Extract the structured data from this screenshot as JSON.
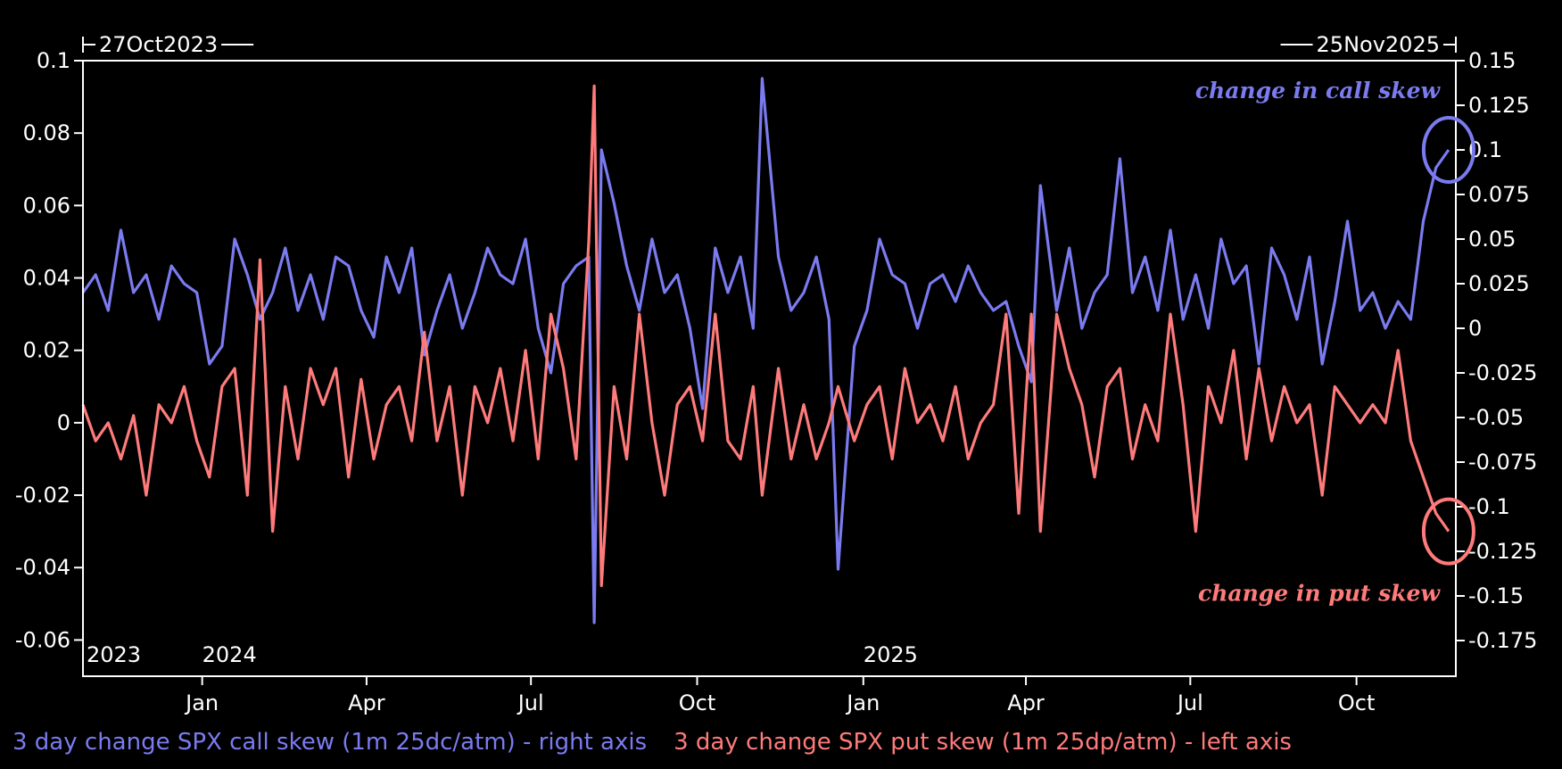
{
  "chart_data": {
    "type": "line",
    "date_range": {
      "start": "27Oct2023",
      "end": "25Nov2025"
    },
    "x_range": [
      "2023-10-27",
      "2025-11-25"
    ],
    "left_axis": {
      "ylim": [
        -0.07,
        0.1
      ],
      "ticks": [
        0.1,
        0.08,
        0.06,
        0.04,
        0.02,
        0,
        -0.02,
        -0.04,
        -0.06
      ],
      "tick_labels": [
        "0.1",
        "0.08",
        "0.06",
        "0.04",
        "0.02",
        "0",
        "-0.02",
        "-0.04",
        "-0.06"
      ]
    },
    "right_axis": {
      "ylim": [
        -0.195,
        0.15
      ],
      "ticks": [
        0.15,
        0.125,
        0.1,
        0.075,
        0.05,
        0.025,
        0,
        -0.025,
        -0.05,
        -0.075,
        -0.1,
        -0.125,
        -0.15,
        -0.175
      ],
      "tick_labels": [
        "0.15",
        "0.125",
        "0.1",
        "0.075",
        "0.05",
        "0.025",
        "0",
        "-0.025",
        "-0.05",
        "-0.075",
        "-0.1",
        "-0.125",
        "-0.15",
        "-0.175"
      ]
    },
    "x_ticks": [
      {
        "date": "2024-01-01",
        "label": "Jan"
      },
      {
        "date": "2024-04-01",
        "label": "Apr"
      },
      {
        "date": "2024-07-01",
        "label": "Jul"
      },
      {
        "date": "2024-10-01",
        "label": "Oct"
      },
      {
        "date": "2025-01-01",
        "label": "Jan"
      },
      {
        "date": "2025-04-01",
        "label": "Apr"
      },
      {
        "date": "2025-07-01",
        "label": "Jul"
      },
      {
        "date": "2025-10-01",
        "label": "Oct"
      }
    ],
    "year_labels": [
      {
        "date": "2023-10-27",
        "label": "2023"
      },
      {
        "date": "2024-01-01",
        "label": "2024"
      },
      {
        "date": "2025-01-01",
        "label": "2025"
      }
    ],
    "grid": false,
    "legend_position": "bottom",
    "series": [
      {
        "name": "3 day change SPX call skew (1m 25dc/atm) - right axis",
        "axis": "right",
        "color": "#7b7bf0",
        "x": [
          "2023-10-27",
          "2023-11-03",
          "2023-11-10",
          "2023-11-17",
          "2023-11-24",
          "2023-12-01",
          "2023-12-08",
          "2023-12-15",
          "2023-12-22",
          "2023-12-29",
          "2024-01-05",
          "2024-01-12",
          "2024-01-19",
          "2024-01-26",
          "2024-02-02",
          "2024-02-09",
          "2024-02-16",
          "2024-02-23",
          "2024-03-01",
          "2024-03-08",
          "2024-03-15",
          "2024-03-22",
          "2024-03-29",
          "2024-04-05",
          "2024-04-12",
          "2024-04-19",
          "2024-04-26",
          "2024-05-03",
          "2024-05-10",
          "2024-05-17",
          "2024-05-24",
          "2024-05-31",
          "2024-06-07",
          "2024-06-14",
          "2024-06-21",
          "2024-06-28",
          "2024-07-05",
          "2024-07-12",
          "2024-07-19",
          "2024-07-26",
          "2024-08-02",
          "2024-08-05",
          "2024-08-09",
          "2024-08-16",
          "2024-08-23",
          "2024-08-30",
          "2024-09-06",
          "2024-09-13",
          "2024-09-20",
          "2024-09-27",
          "2024-10-04",
          "2024-10-11",
          "2024-10-18",
          "2024-10-25",
          "2024-11-01",
          "2024-11-06",
          "2024-11-15",
          "2024-11-22",
          "2024-11-29",
          "2024-12-06",
          "2024-12-13",
          "2024-12-18",
          "2024-12-27",
          "2025-01-03",
          "2025-01-10",
          "2025-01-17",
          "2025-01-24",
          "2025-01-31",
          "2025-02-07",
          "2025-02-14",
          "2025-02-21",
          "2025-02-28",
          "2025-03-07",
          "2025-03-14",
          "2025-03-21",
          "2025-03-28",
          "2025-04-04",
          "2025-04-09",
          "2025-04-18",
          "2025-04-25",
          "2025-05-02",
          "2025-05-09",
          "2025-05-16",
          "2025-05-23",
          "2025-05-30",
          "2025-06-06",
          "2025-06-13",
          "2025-06-20",
          "2025-06-27",
          "2025-07-04",
          "2025-07-11",
          "2025-07-18",
          "2025-07-25",
          "2025-08-01",
          "2025-08-08",
          "2025-08-15",
          "2025-08-22",
          "2025-08-29",
          "2025-09-05",
          "2025-09-12",
          "2025-09-19",
          "2025-09-26",
          "2025-10-03",
          "2025-10-10",
          "2025-10-17",
          "2025-10-24",
          "2025-10-31",
          "2025-11-07",
          "2025-11-14",
          "2025-11-21"
        ],
        "values": [
          0.02,
          0.03,
          0.01,
          0.055,
          0.02,
          0.03,
          0.005,
          0.035,
          0.025,
          0.02,
          -0.02,
          -0.01,
          0.05,
          0.03,
          0.005,
          0.02,
          0.045,
          0.01,
          0.03,
          0.005,
          0.04,
          0.035,
          0.01,
          -0.005,
          0.04,
          0.02,
          0.045,
          -0.015,
          0.01,
          0.03,
          0.0,
          0.02,
          0.045,
          0.03,
          0.025,
          0.05,
          0.0,
          -0.025,
          0.025,
          0.035,
          0.04,
          -0.165,
          0.1,
          0.07,
          0.035,
          0.01,
          0.05,
          0.02,
          0.03,
          0.0,
          -0.045,
          0.045,
          0.02,
          0.04,
          0.0,
          0.14,
          0.04,
          0.01,
          0.02,
          0.04,
          0.005,
          -0.135,
          -0.01,
          0.01,
          0.05,
          0.03,
          0.025,
          0.0,
          0.025,
          0.03,
          0.015,
          0.035,
          0.02,
          0.01,
          0.015,
          -0.01,
          -0.03,
          0.08,
          0.01,
          0.045,
          0.0,
          0.02,
          0.03,
          0.095,
          0.02,
          0.04,
          0.01,
          0.055,
          0.005,
          0.03,
          0.0,
          0.05,
          0.025,
          0.035,
          -0.02,
          0.045,
          0.03,
          0.005,
          0.04,
          -0.02,
          0.015,
          0.06,
          0.01,
          0.02,
          0.0,
          0.015,
          0.005,
          0.06,
          0.09,
          0.1
        ]
      },
      {
        "name": "3 day change SPX put skew (1m 25dp/atm) - left axis",
        "axis": "left",
        "color": "#ff7b7b",
        "x": [
          "2023-10-27",
          "2023-11-03",
          "2023-11-10",
          "2023-11-17",
          "2023-11-24",
          "2023-12-01",
          "2023-12-08",
          "2023-12-15",
          "2023-12-22",
          "2023-12-29",
          "2024-01-05",
          "2024-01-12",
          "2024-01-19",
          "2024-01-26",
          "2024-02-02",
          "2024-02-09",
          "2024-02-16",
          "2024-02-23",
          "2024-03-01",
          "2024-03-08",
          "2024-03-15",
          "2024-03-22",
          "2024-03-29",
          "2024-04-05",
          "2024-04-12",
          "2024-04-19",
          "2024-04-26",
          "2024-05-03",
          "2024-05-10",
          "2024-05-17",
          "2024-05-24",
          "2024-05-31",
          "2024-06-07",
          "2024-06-14",
          "2024-06-21",
          "2024-06-28",
          "2024-07-05",
          "2024-07-12",
          "2024-07-19",
          "2024-07-26",
          "2024-08-02",
          "2024-08-05",
          "2024-08-09",
          "2024-08-16",
          "2024-08-23",
          "2024-08-30",
          "2024-09-06",
          "2024-09-13",
          "2024-09-20",
          "2024-09-27",
          "2024-10-04",
          "2024-10-11",
          "2024-10-18",
          "2024-10-25",
          "2024-11-01",
          "2024-11-06",
          "2024-11-15",
          "2024-11-22",
          "2024-11-29",
          "2024-12-06",
          "2024-12-13",
          "2024-12-18",
          "2024-12-27",
          "2025-01-03",
          "2025-01-10",
          "2025-01-17",
          "2025-01-24",
          "2025-01-31",
          "2025-02-07",
          "2025-02-14",
          "2025-02-21",
          "2025-02-28",
          "2025-03-07",
          "2025-03-14",
          "2025-03-21",
          "2025-03-28",
          "2025-04-04",
          "2025-04-09",
          "2025-04-18",
          "2025-04-25",
          "2025-05-02",
          "2025-05-09",
          "2025-05-16",
          "2025-05-23",
          "2025-05-30",
          "2025-06-06",
          "2025-06-13",
          "2025-06-20",
          "2025-06-27",
          "2025-07-04",
          "2025-07-11",
          "2025-07-18",
          "2025-07-25",
          "2025-08-01",
          "2025-08-08",
          "2025-08-15",
          "2025-08-22",
          "2025-08-29",
          "2025-09-05",
          "2025-09-12",
          "2025-09-19",
          "2025-09-26",
          "2025-10-03",
          "2025-10-10",
          "2025-10-17",
          "2025-10-24",
          "2025-10-31",
          "2025-11-07",
          "2025-11-14",
          "2025-11-21"
        ],
        "values": [
          0.005,
          -0.005,
          0.0,
          -0.01,
          0.002,
          -0.02,
          0.005,
          0.0,
          0.01,
          -0.005,
          -0.015,
          0.01,
          0.015,
          -0.02,
          0.045,
          -0.03,
          0.01,
          -0.01,
          0.015,
          0.005,
          0.015,
          -0.015,
          0.012,
          -0.01,
          0.005,
          0.01,
          -0.005,
          0.025,
          -0.005,
          0.01,
          -0.02,
          0.01,
          0.0,
          0.015,
          -0.005,
          0.02,
          -0.01,
          0.03,
          0.015,
          -0.01,
          0.05,
          0.093,
          -0.045,
          0.01,
          -0.01,
          0.03,
          0.0,
          -0.02,
          0.005,
          0.01,
          -0.005,
          0.03,
          -0.005,
          -0.01,
          0.01,
          -0.02,
          0.015,
          -0.01,
          0.005,
          -0.01,
          0.0,
          0.01,
          -0.005,
          0.005,
          0.01,
          -0.01,
          0.015,
          0.0,
          0.005,
          -0.005,
          0.01,
          -0.01,
          0.0,
          0.005,
          0.03,
          -0.025,
          0.03,
          -0.03,
          0.03,
          0.015,
          0.005,
          -0.015,
          0.01,
          0.015,
          -0.01,
          0.005,
          -0.005,
          0.03,
          0.005,
          -0.03,
          0.01,
          0.0,
          0.02,
          -0.01,
          0.015,
          -0.005,
          0.01,
          0.0,
          0.005,
          -0.02,
          0.01,
          0.005,
          0.0,
          0.005,
          0.0,
          0.02,
          -0.005,
          -0.015,
          -0.025,
          -0.03
        ]
      }
    ],
    "annotations": [
      {
        "text": "change in call skew",
        "series": 0
      },
      {
        "text": "change in put skew",
        "series": 1
      }
    ]
  }
}
